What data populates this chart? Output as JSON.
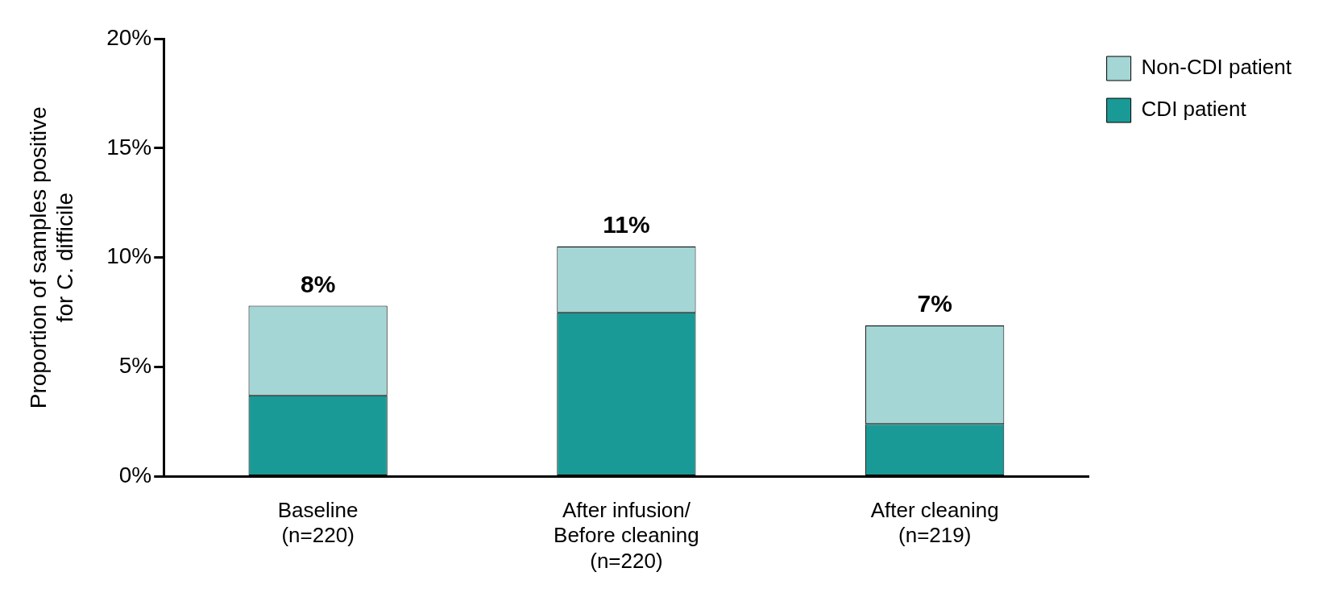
{
  "chart_data": {
    "type": "bar",
    "stacked": true,
    "ylabel": "Proportion of samples positive\nfor C. difficile",
    "categories": [
      "Baseline\n(n=220)",
      "After infusion/\nBefore cleaning\n(n=220)",
      "After cleaning\n(n=219)"
    ],
    "series": [
      {
        "name": "CDI patient",
        "color": "#1a9a96",
        "values": [
          3.7,
          7.5,
          2.4
        ]
      },
      {
        "name": "Non-CDI patient",
        "color": "#a3d6d4",
        "values": [
          4.1,
          3.0,
          4.5
        ]
      }
    ],
    "totals": [
      "8%",
      "11%",
      "7%"
    ],
    "ylim": [
      0,
      20
    ],
    "yticks": [
      {
        "value": 0,
        "label": "0%"
      },
      {
        "value": 5,
        "label": "5%"
      },
      {
        "value": 10,
        "label": "10%"
      },
      {
        "value": 15,
        "label": "15%"
      },
      {
        "value": 20,
        "label": "20%"
      }
    ],
    "grid": false,
    "legend": "top right"
  }
}
